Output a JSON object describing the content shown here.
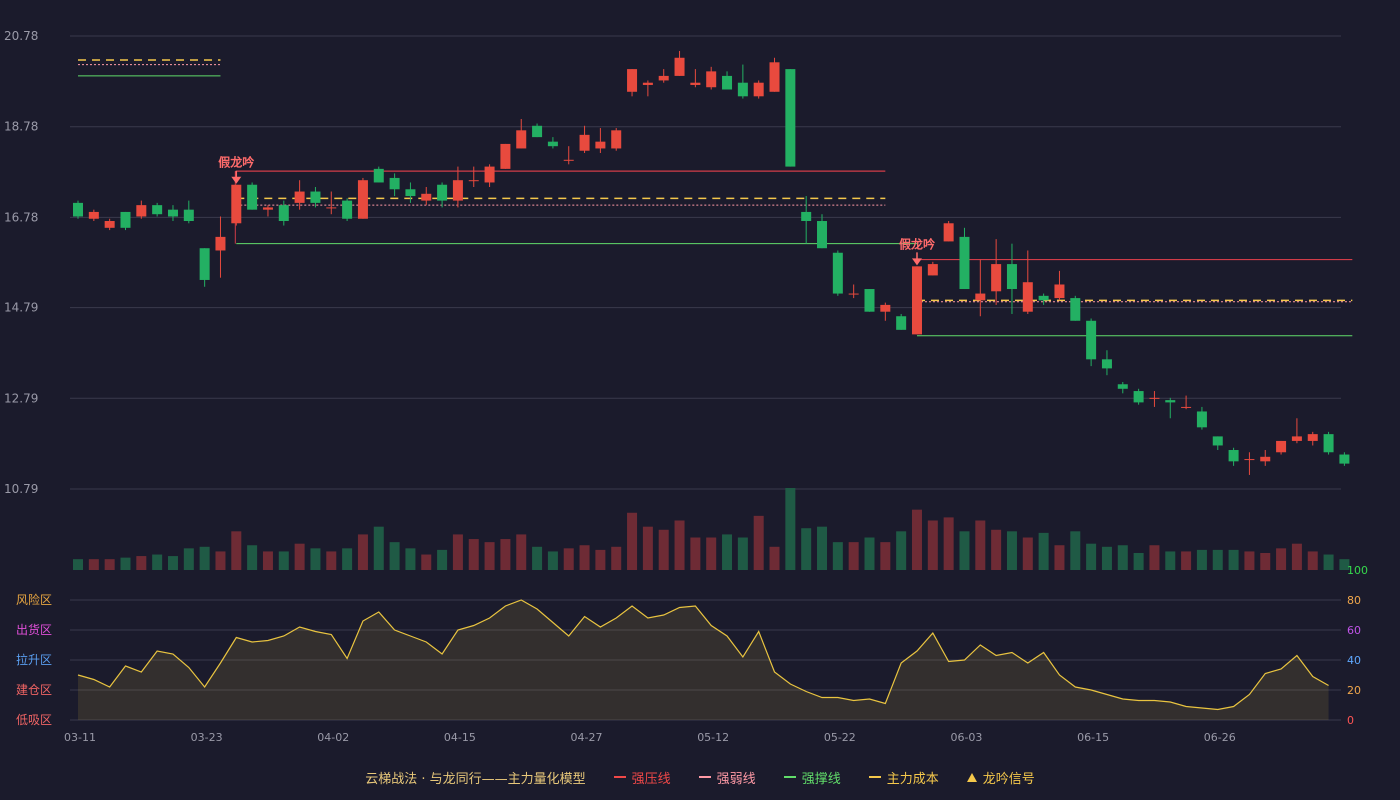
{
  "chart_data": [
    {
      "type": "candlestick",
      "name": "",
      "y_ticks": [
        "20.78",
        "18.78",
        "16.78",
        "14.79",
        "12.79",
        "10.79"
      ],
      "ylim": [
        10.79,
        20.78
      ],
      "x_ticks": [
        "03-11",
        "03-23",
        "04-02",
        "04-15",
        "04-27",
        "05-12",
        "05-22",
        "06-03",
        "06-15",
        "06-26"
      ],
      "x_tick_index": [
        0,
        8,
        16,
        24,
        32,
        40,
        48,
        56,
        64,
        72
      ],
      "candles": [
        [
          17.1,
          16.8,
          16.75,
          17.15
        ],
        [
          16.75,
          16.9,
          16.7,
          16.95
        ],
        [
          16.55,
          16.7,
          16.5,
          16.75
        ],
        [
          16.9,
          16.55,
          16.5,
          16.9
        ],
        [
          16.8,
          17.05,
          16.75,
          17.15
        ],
        [
          17.05,
          16.85,
          16.8,
          17.1
        ],
        [
          16.95,
          16.8,
          16.7,
          17.05
        ],
        [
          16.95,
          16.7,
          16.65,
          17.15
        ],
        [
          16.1,
          15.4,
          15.25,
          16.1
        ],
        [
          16.05,
          16.35,
          15.45,
          16.8
        ],
        [
          16.65,
          17.5,
          16.6,
          17.5
        ],
        [
          17.5,
          16.95,
          16.95,
          17.55
        ],
        [
          16.95,
          17.0,
          16.8,
          17.05
        ],
        [
          17.05,
          16.7,
          16.6,
          17.15
        ],
        [
          17.1,
          17.35,
          16.95,
          17.6
        ],
        [
          17.35,
          17.1,
          17.0,
          17.45
        ],
        [
          17.0,
          17.0,
          16.85,
          17.35
        ],
        [
          17.15,
          16.75,
          16.7,
          17.2
        ],
        [
          16.75,
          17.6,
          16.75,
          17.65
        ],
        [
          17.85,
          17.55,
          17.55,
          17.9
        ],
        [
          17.65,
          17.4,
          17.25,
          17.75
        ],
        [
          17.4,
          17.25,
          17.1,
          17.55
        ],
        [
          17.15,
          17.3,
          17.05,
          17.45
        ],
        [
          17.5,
          17.15,
          17.0,
          17.55
        ],
        [
          17.15,
          17.6,
          17.0,
          17.9
        ],
        [
          17.6,
          17.6,
          17.45,
          17.9
        ],
        [
          17.55,
          17.9,
          17.45,
          17.95
        ],
        [
          17.85,
          18.4,
          17.85,
          18.4
        ],
        [
          18.3,
          18.7,
          18.3,
          18.95
        ],
        [
          18.8,
          18.55,
          18.55,
          18.85
        ],
        [
          18.45,
          18.35,
          18.3,
          18.55
        ],
        [
          18.05,
          18.05,
          17.95,
          18.35
        ],
        [
          18.25,
          18.6,
          18.2,
          18.8
        ],
        [
          18.3,
          18.45,
          18.2,
          18.75
        ],
        [
          18.3,
          18.7,
          18.25,
          18.75
        ],
        [
          19.55,
          20.05,
          19.45,
          20.05
        ],
        [
          19.7,
          19.75,
          19.45,
          19.8
        ],
        [
          19.8,
          19.9,
          19.75,
          20.05
        ],
        [
          19.9,
          20.3,
          19.9,
          20.45
        ],
        [
          19.7,
          19.75,
          19.65,
          20.05
        ],
        [
          19.65,
          20.0,
          19.6,
          20.1
        ],
        [
          19.9,
          19.6,
          19.6,
          20.0
        ],
        [
          19.75,
          19.45,
          19.4,
          20.15
        ],
        [
          19.45,
          19.75,
          19.4,
          19.8
        ],
        [
          19.55,
          20.2,
          19.55,
          20.3
        ],
        [
          20.05,
          17.9,
          17.9,
          20.05
        ],
        [
          16.9,
          16.7,
          16.2,
          17.25
        ],
        [
          16.7,
          16.1,
          16.1,
          16.85
        ],
        [
          16.0,
          15.1,
          15.05,
          16.05
        ],
        [
          15.1,
          15.1,
          15.0,
          15.3
        ],
        [
          15.2,
          14.7,
          14.7,
          15.2
        ],
        [
          14.7,
          14.85,
          14.5,
          14.9
        ],
        [
          14.6,
          14.3,
          14.3,
          14.65
        ],
        [
          14.2,
          15.7,
          14.2,
          15.7
        ],
        [
          15.5,
          15.75,
          15.5,
          15.8
        ],
        [
          16.25,
          16.65,
          16.25,
          16.7
        ],
        [
          16.35,
          15.2,
          15.2,
          16.55
        ],
        [
          14.95,
          15.1,
          14.6,
          15.85
        ],
        [
          15.15,
          15.75,
          14.85,
          16.3
        ],
        [
          15.75,
          15.2,
          14.65,
          16.2
        ],
        [
          14.7,
          15.35,
          14.65,
          16.05
        ],
        [
          15.05,
          14.95,
          14.85,
          15.1
        ],
        [
          15.0,
          15.3,
          14.95,
          15.6
        ],
        [
          15.0,
          14.5,
          14.5,
          15.05
        ],
        [
          14.5,
          13.65,
          13.5,
          14.55
        ],
        [
          13.65,
          13.45,
          13.3,
          13.85
        ],
        [
          13.1,
          13.0,
          12.9,
          13.15
        ],
        [
          12.95,
          12.7,
          12.65,
          13.0
        ],
        [
          12.8,
          12.8,
          12.6,
          12.95
        ],
        [
          12.75,
          12.7,
          12.35,
          12.8
        ],
        [
          12.6,
          12.6,
          12.55,
          12.85
        ],
        [
          12.5,
          12.15,
          12.1,
          12.6
        ],
        [
          11.95,
          11.75,
          11.65,
          11.95
        ],
        [
          11.65,
          11.4,
          11.3,
          11.7
        ],
        [
          11.45,
          11.45,
          11.1,
          11.6
        ],
        [
          11.4,
          11.5,
          11.3,
          11.65
        ],
        [
          11.6,
          11.85,
          11.55,
          11.85
        ],
        [
          11.85,
          11.95,
          11.8,
          12.35
        ],
        [
          11.85,
          12.0,
          11.75,
          12.05
        ],
        [
          12.0,
          11.6,
          11.55,
          12.05
        ],
        [
          11.55,
          11.35,
          11.3,
          11.6
        ]
      ],
      "volume": [
        7,
        7,
        7,
        8,
        9,
        10,
        9,
        14,
        15,
        12,
        25,
        16,
        12,
        12,
        17,
        14,
        12,
        14,
        23,
        28,
        18,
        14,
        10,
        13,
        23,
        20,
        18,
        20,
        23,
        15,
        12,
        14,
        16,
        13,
        15,
        37,
        28,
        26,
        32,
        21,
        21,
        23,
        21,
        35,
        15,
        53,
        27,
        28,
        18,
        18,
        21,
        18,
        25,
        39,
        32,
        34,
        25,
        32,
        26,
        25,
        21,
        24,
        16,
        25,
        17,
        15,
        16,
        11,
        16,
        12,
        12,
        13,
        13,
        13,
        12,
        11,
        14,
        17,
        12,
        10,
        7
      ]
    },
    {
      "type": "line",
      "name": "",
      "y_ticks": [
        "0",
        "20",
        "40",
        "60",
        "80",
        "100"
      ],
      "ylim": [
        0,
        100
      ],
      "zones": [
        "风险区",
        "出货区",
        "拉升区",
        "建仓区",
        "低吸区"
      ],
      "values": [
        30,
        27,
        22,
        36,
        32,
        46,
        44,
        35,
        22,
        38,
        55,
        52,
        53,
        56,
        62,
        59,
        57,
        41,
        66,
        72,
        60,
        56,
        52,
        44,
        60,
        63,
        68,
        76,
        80,
        74,
        65,
        56,
        69,
        62,
        68,
        76,
        68,
        70,
        75,
        76,
        63,
        56,
        42,
        59,
        32,
        24,
        19,
        15,
        15,
        13,
        14,
        11,
        38,
        46,
        58,
        39,
        40,
        50,
        43,
        45,
        38,
        45,
        30,
        22,
        20,
        17,
        14,
        13,
        13,
        12,
        9,
        8,
        7,
        9,
        17,
        31,
        34,
        43,
        29,
        23
      ]
    }
  ],
  "annotations": {
    "signal_label": "假龙吟",
    "signal_indices": [
      10,
      53
    ]
  },
  "legend": {
    "title": "云梯战法 · 与龙同行——主力量化模型",
    "items": [
      {
        "label": "强压线",
        "color": "#f04848",
        "style": "line"
      },
      {
        "label": "强弱线",
        "color": "#ff9aa6",
        "style": "dash"
      },
      {
        "label": "强撑线",
        "color": "#61dd6a",
        "style": "line"
      },
      {
        "label": "主力成本",
        "color": "#f5c84b",
        "style": "dash"
      },
      {
        "label": "龙吟信号",
        "color": "#f5c84b",
        "style": "triangle"
      }
    ]
  },
  "colors": {
    "up": "#e84a3e",
    "down": "#23b063",
    "volume_up": "#6e2b35",
    "volume_down": "#1f5a45",
    "osc_line": "#e9c440",
    "grid": "#3a3a4c",
    "signal": "#ff6b6b",
    "zone_colors": [
      "#e8a641",
      "#e04fd8",
      "#5a9ef0",
      "#f06464",
      "#f06464"
    ],
    "osc_tick_colors": [
      "#ff5555",
      "#f0a64b",
      "#5fa8ff",
      "#c054e8",
      "#f0a64b",
      "#35d84c"
    ]
  }
}
